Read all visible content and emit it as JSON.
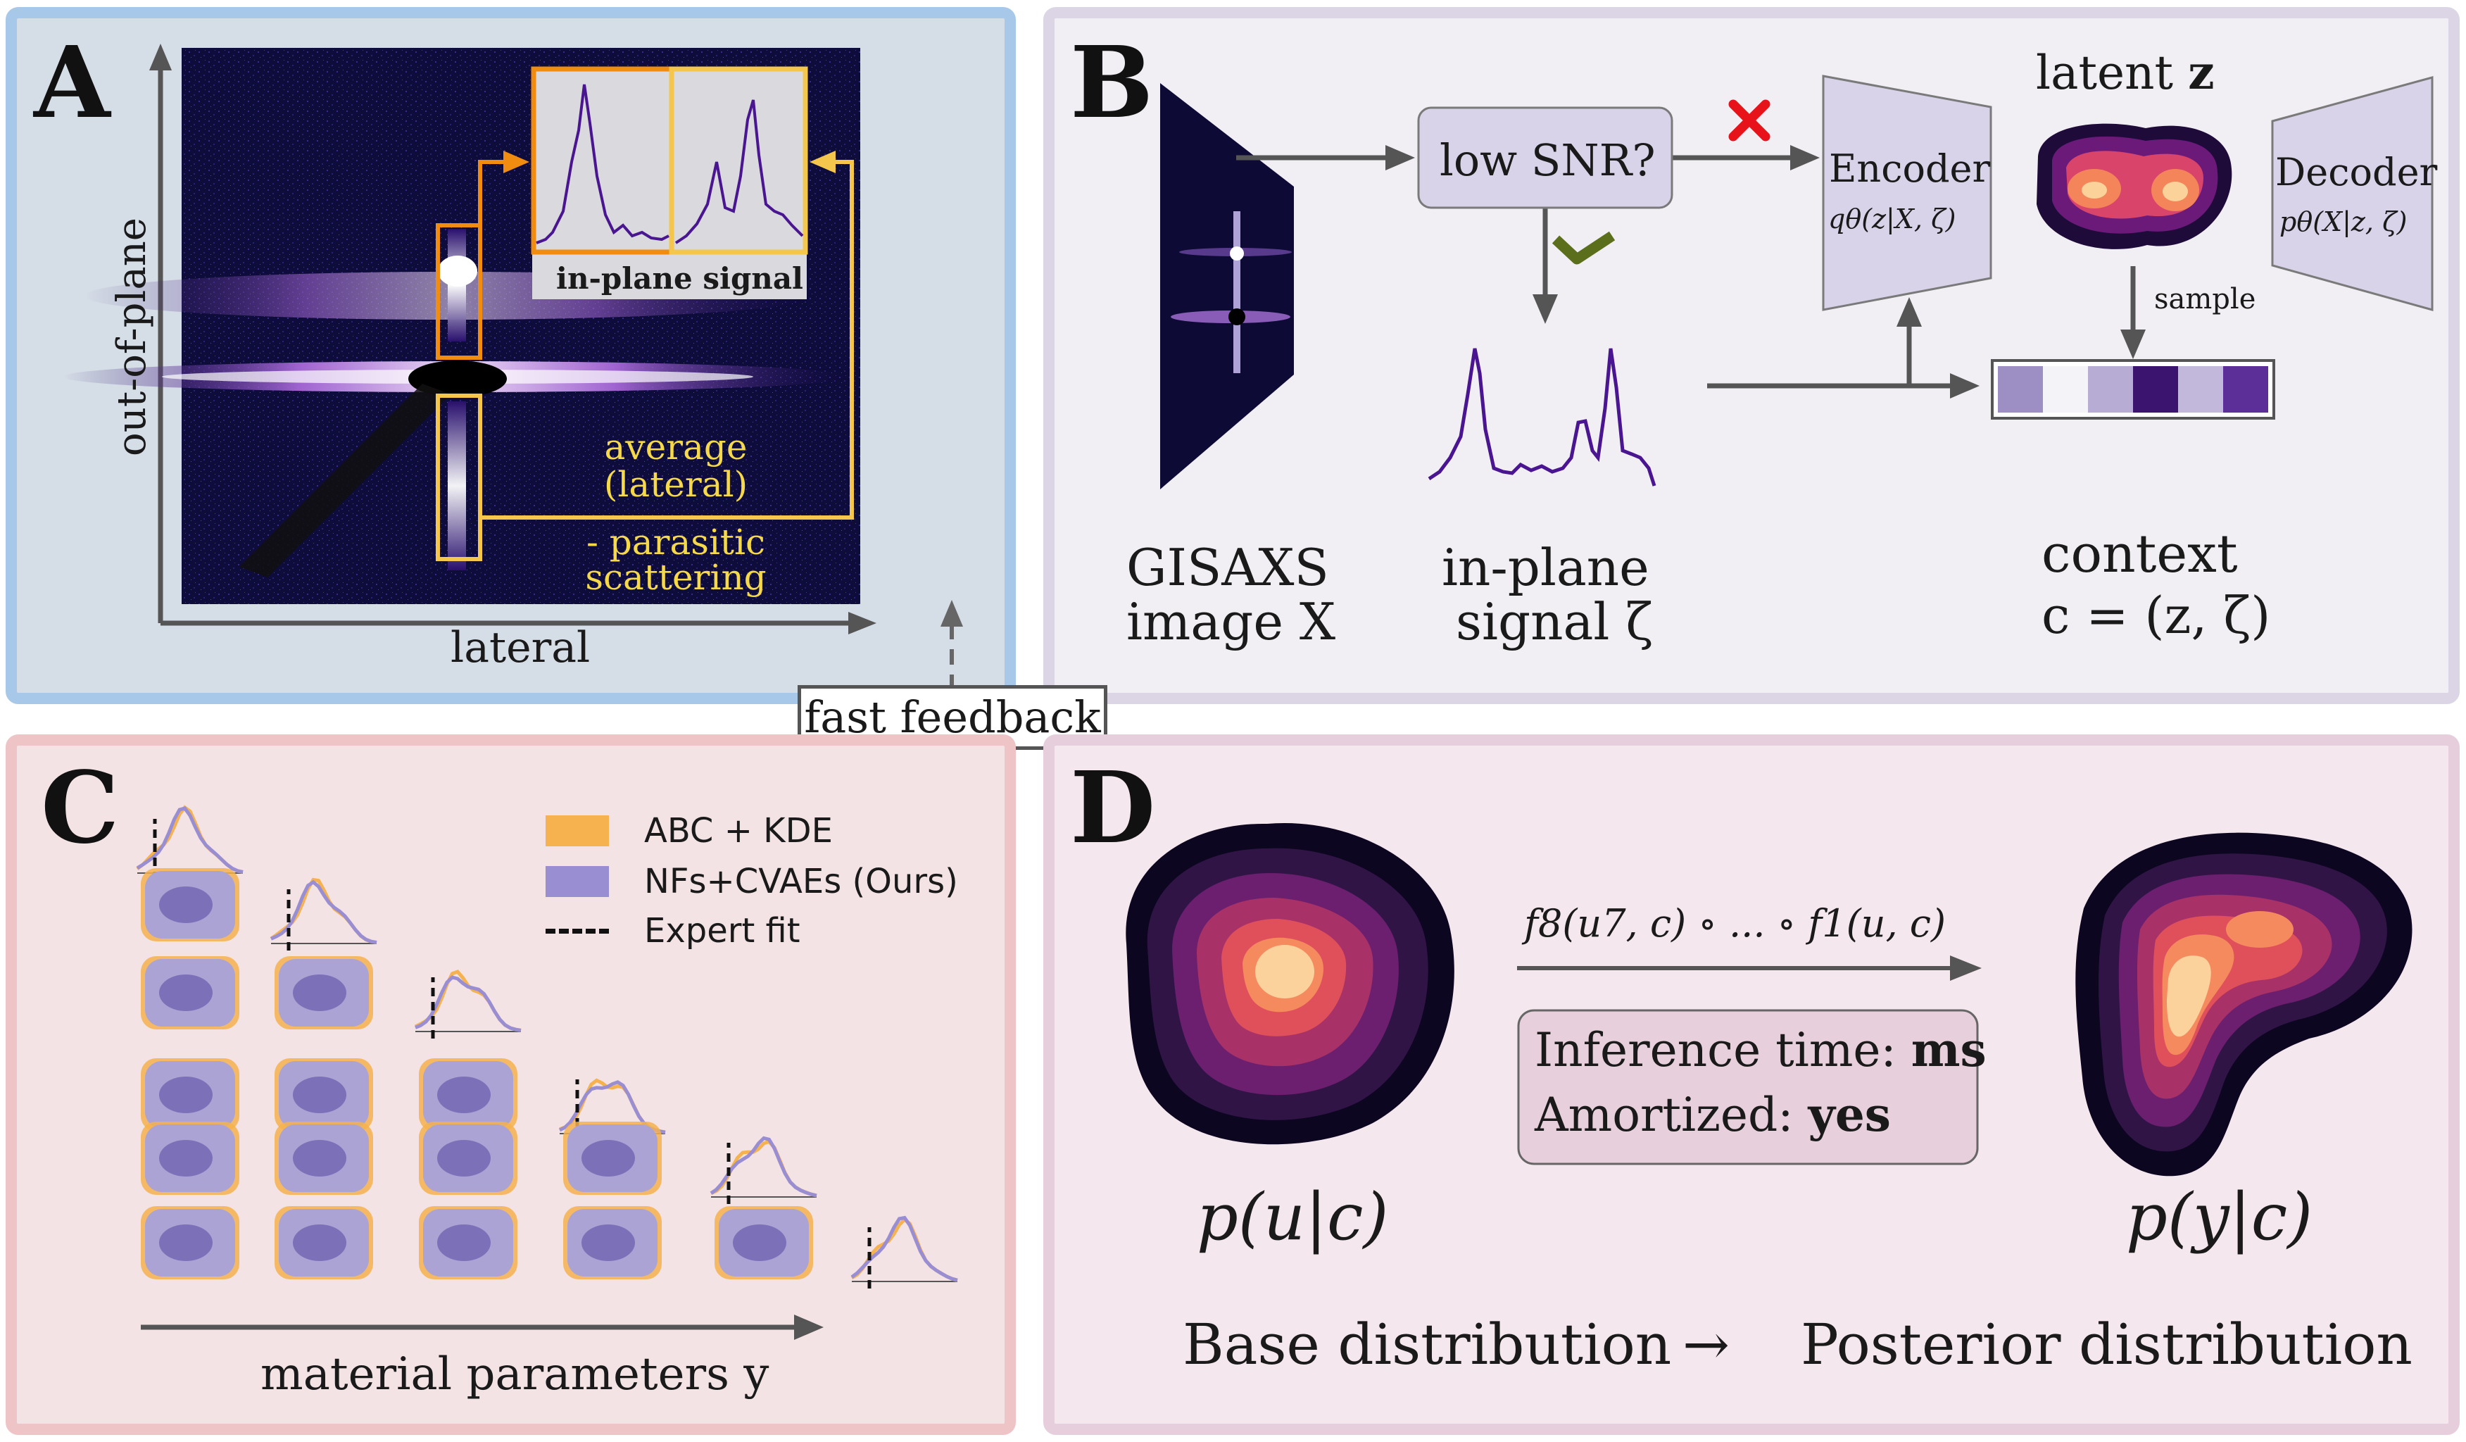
{
  "panel_a": {
    "letter": "A",
    "axis_y_label": "out-of-plane",
    "axis_x_label": "lateral",
    "inset_label": "in-plane signal",
    "average_label_line1": "average",
    "average_label_line2": "(lateral)",
    "parasitic_label_line1": "- parasitic",
    "parasitic_label_line2": "scattering"
  },
  "feedback": {
    "label": "fast feedback"
  },
  "panel_b": {
    "letter": "B",
    "snr_question": "low SNR?",
    "encoder_label": "Encoder",
    "encoder_formula": "qθ(z|X, ζ)",
    "latent_label": "latent",
    "latent_symbol": "z",
    "decoder_label": "Decoder",
    "decoder_formula": "pθ(X|z, ζ)",
    "sample_label": "sample",
    "gisaxs_line1": "GISAXS",
    "gisaxs_line2": "image X",
    "signal_line1": "in-plane",
    "signal_line2": "signal ζ",
    "context_line1": "context",
    "context_line2": "c = (z, ζ)",
    "context_cells": [
      "#9d8fc4",
      "#f4f3f7",
      "#b7acd4",
      "#3b1470",
      "#c2b8dc",
      "#5b2f97"
    ],
    "no_mark_color": "#e8121b",
    "yes_mark_color": "#5a6e1b"
  },
  "panel_c": {
    "letter": "C",
    "legend": [
      {
        "label": "ABC + KDE",
        "color": "#f5b24f"
      },
      {
        "label": "NFs+CVAEs (Ours)",
        "color": "#9a8ed3"
      },
      {
        "label": "Expert fit",
        "color": "#111111"
      }
    ],
    "axis_label": "material parameters y"
  },
  "panel_d": {
    "letter": "D",
    "transform_formula": "f8(u7, c) ∘ ... ∘ f1(u, c)",
    "inference_label": "Inference time:",
    "inference_value": "ms",
    "amortized_label": "Amortized:",
    "amortized_value": "yes",
    "base_label": "p(u|c)",
    "posterior_label": "p(y|c)",
    "base_caption": "Base distribution",
    "arrow_symbol": "→",
    "posterior_caption": "Posterior distribution"
  }
}
